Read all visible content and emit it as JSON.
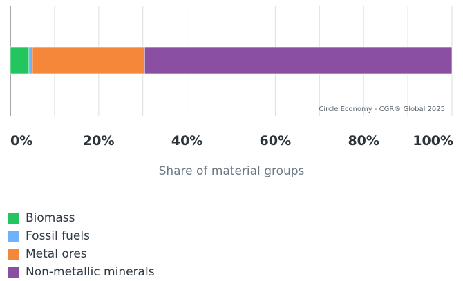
{
  "chart_data": {
    "type": "bar",
    "orientation": "horizontal",
    "stacked": true,
    "xlabel": "Share of material groups",
    "xlim": [
      0,
      100
    ],
    "ticks": [
      "0%",
      "20%",
      "40%",
      "60%",
      "80%",
      "100%"
    ],
    "tick_values": [
      0,
      20,
      40,
      60,
      80,
      100
    ],
    "grid": true,
    "legend_position": "bottom-left",
    "series": [
      {
        "name": "Biomass",
        "value": 4.2,
        "color": "#22c55e"
      },
      {
        "name": "Fossil fuels",
        "value": 0.8,
        "color": "#6fb0ff"
      },
      {
        "name": "Metal ores",
        "value": 25.4,
        "color": "#f5873a"
      },
      {
        "name": "Non-metallic minerals",
        "value": 69.6,
        "color": "#8a4fa0"
      }
    ],
    "source_note": "Circle Economy - CGR® Global 2025"
  }
}
